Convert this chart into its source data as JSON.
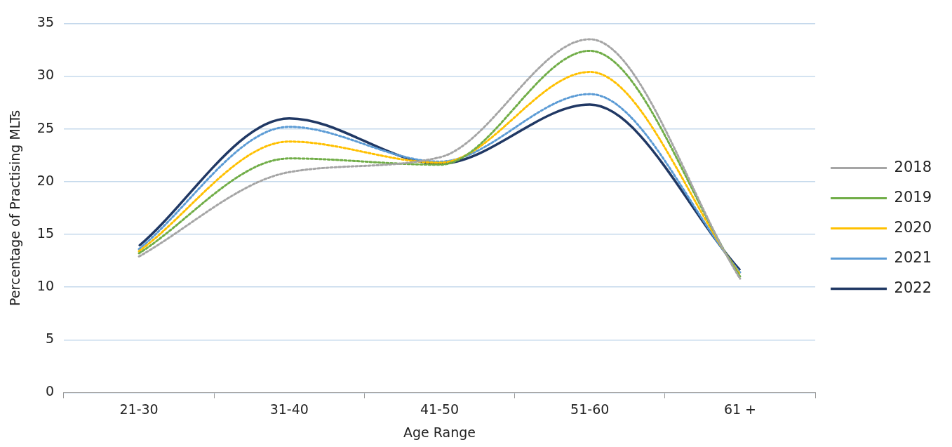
{
  "chart_data": {
    "type": "line",
    "xlabel": "Age Range",
    "ylabel": "Percentage of Practising MLTs",
    "categories": [
      "21-30",
      "31-40",
      "41-50",
      "51-60",
      "61 +"
    ],
    "ylim": [
      0,
      35
    ],
    "yticks": [
      0,
      5,
      10,
      15,
      20,
      25,
      30,
      35
    ],
    "grid": "y",
    "legend": "right",
    "marker": "none",
    "series": [
      {
        "name": "2018",
        "color": "#a5a5a5",
        "line_style": "dotted",
        "values": [
          12.9,
          20.9,
          22.3,
          33.5,
          10.8
        ]
      },
      {
        "name": "2019",
        "color": "#70ad47",
        "line_style": "dotted",
        "values": [
          13.2,
          22.2,
          21.6,
          32.4,
          11.0
        ]
      },
      {
        "name": "2020",
        "color": "#ffc000",
        "line_style": "dotted",
        "values": [
          13.4,
          23.8,
          21.8,
          30.4,
          11.2
        ]
      },
      {
        "name": "2021",
        "color": "#5b9bd5",
        "line_style": "dotted",
        "values": [
          13.6,
          25.2,
          21.9,
          28.3,
          11.4
        ]
      },
      {
        "name": "2022",
        "color": "#203864",
        "line_style": "solid",
        "values": [
          13.9,
          26.0,
          21.7,
          27.3,
          11.6
        ]
      }
    ]
  }
}
